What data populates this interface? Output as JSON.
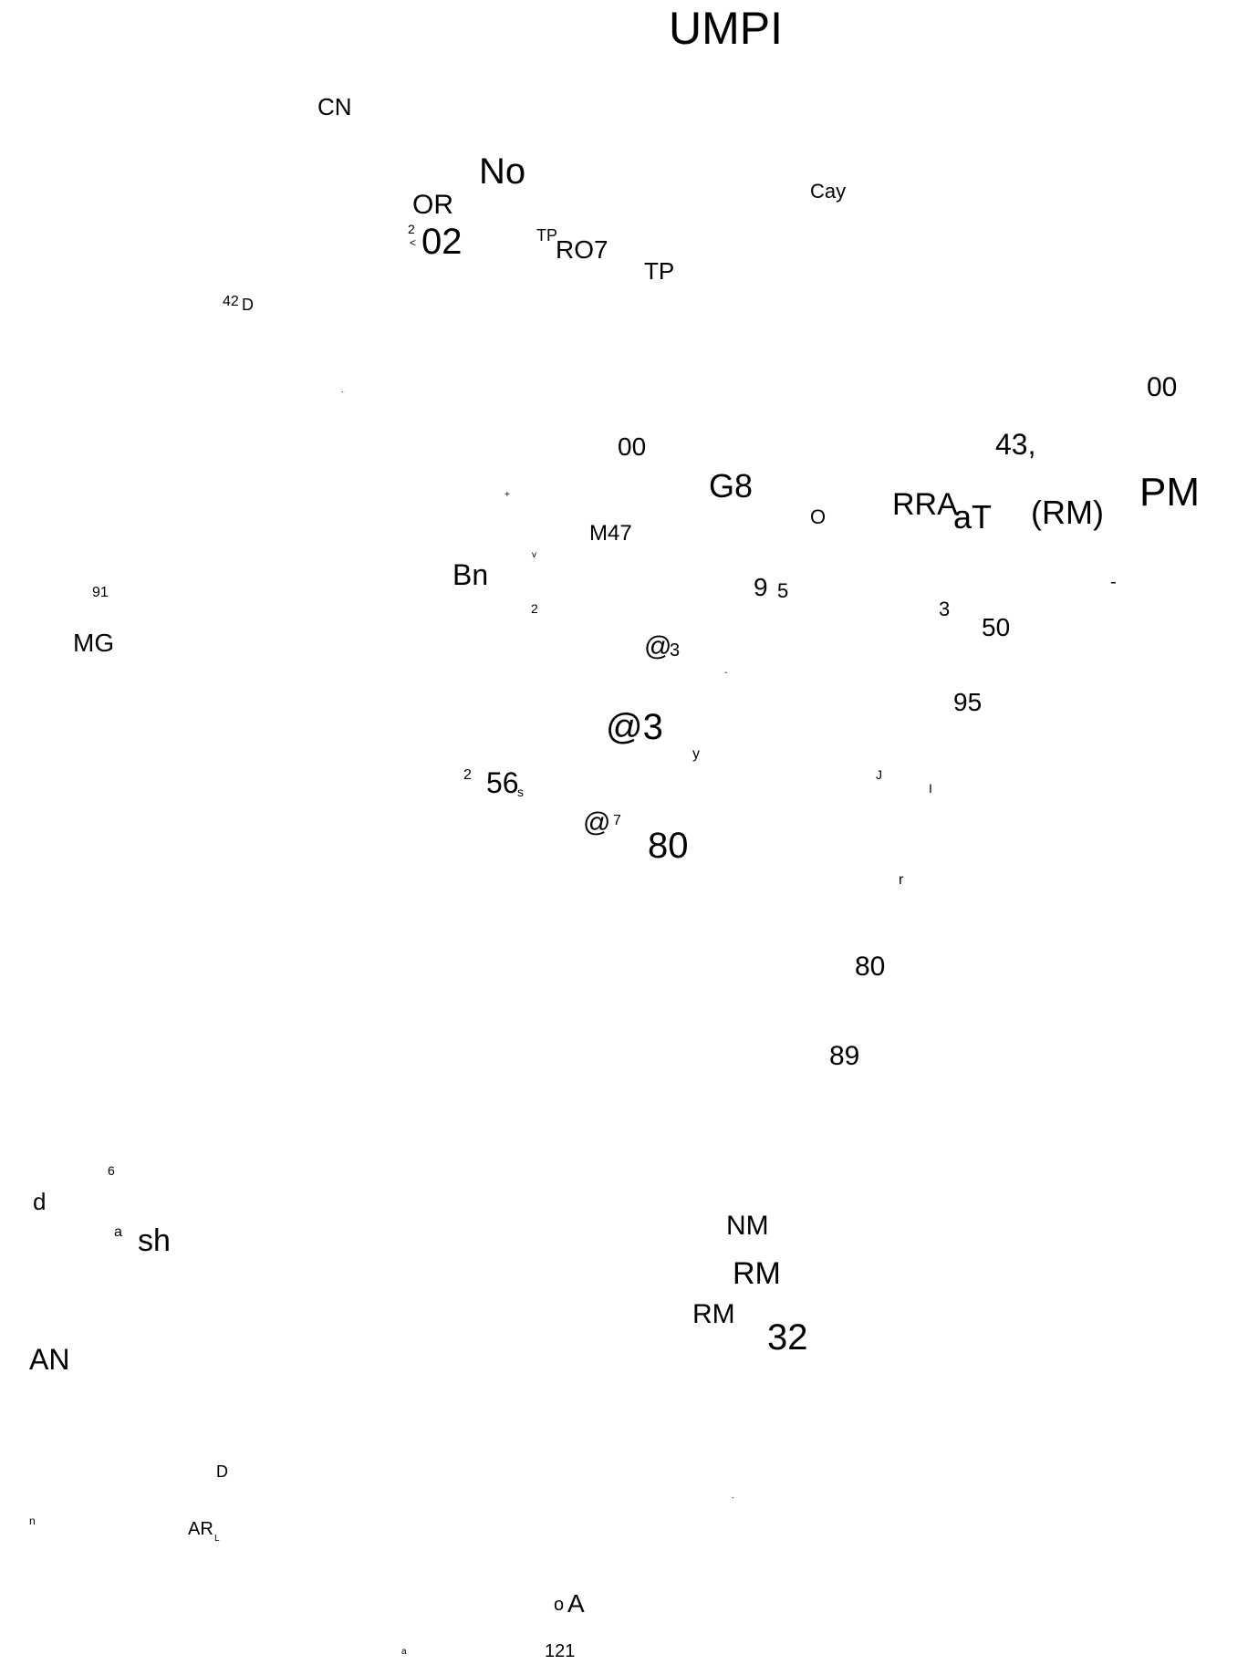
{
  "fragments": {
    "f01": "UMPI",
    "f02": "CN",
    "f03": "No",
    "f04": "OR",
    "f05": "Cay",
    "f06": "2",
    "f07": "<",
    "f08": "02",
    "f09": "TP",
    "f10": "RO7",
    "f11": "TP",
    "f12": "42",
    "f13": "D",
    "f14": "00",
    "f15": "-",
    "f16": "43,",
    "f17": "00",
    "f18": "G8",
    "f19": "PM",
    "f20": "RRA",
    "f21": "aT",
    "f22": "(RM)",
    "f23": "+",
    "f24": "O",
    "f25": "M47",
    "f26": "v",
    "f27": "Bn",
    "f28": "9",
    "f29": "5",
    "f30": "-",
    "f31": "91",
    "f32": "2",
    "f33": "3",
    "f34": "50",
    "f35": "MG",
    "f36": "@",
    "f37": "3",
    "f38": "-",
    "f39": "95",
    "f40": "@3",
    "f41": "y",
    "f42": "2",
    "f43": "56",
    "f44": "s",
    "f45": "J",
    "f46": "I",
    "f47": "@",
    "f48": "7",
    "f49": "80",
    "f50": "r",
    "f51": "80",
    "f52": "89",
    "f53": "6",
    "f54": "d",
    "f55": "a",
    "f56": "sh",
    "f57": "NM",
    "f58": "RM",
    "f59": "RM",
    "f60": "32",
    "f61": "AN",
    "f62": "D",
    "f63": "-",
    "f64": "n",
    "f65": "AR",
    "f66": "L",
    "f67": "o",
    "f68": "A",
    "f69": "a",
    "f70": "121"
  }
}
